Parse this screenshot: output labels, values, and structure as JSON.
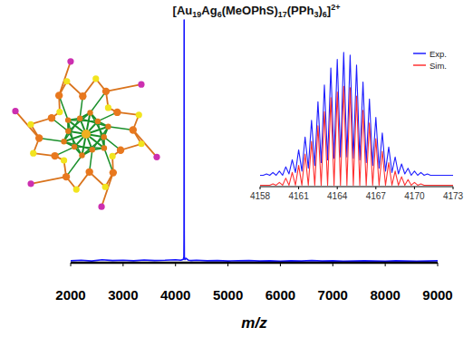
{
  "chart_data": [
    {
      "type": "line",
      "title": "[Au19Ag6(MeOPhS)17(PPh3)6]2+",
      "x_label": "m/z",
      "x": [
        2000,
        2200,
        2400,
        2600,
        2800,
        3000,
        3200,
        3400,
        3600,
        3800,
        4000,
        4100,
        4150,
        4160,
        4162,
        4163,
        4164,
        4164.5,
        4165,
        4166,
        4168,
        4180,
        4200,
        4250,
        4300,
        4400,
        4600,
        4800,
        5000,
        5200,
        5400,
        5600,
        5800,
        6000,
        6200,
        6400,
        6600,
        6800,
        7000,
        7200,
        7400,
        7600,
        7800,
        8000,
        8200,
        8400,
        8600,
        8800,
        9000
      ],
      "series": [
        {
          "color": "#1414ff",
          "values": [
            0.8,
            1.0,
            0.7,
            1.2,
            0.9,
            1.0,
            0.8,
            1.1,
            0.9,
            1.0,
            1.2,
            1.0,
            1.4,
            2.5,
            10,
            40,
            85,
            100,
            60,
            12,
            2.5,
            1.3,
            1.8,
            1.0,
            0.9,
            1.0,
            0.8,
            0.9,
            0.7,
            0.8,
            0.9,
            0.7,
            0.8,
            0.6,
            0.8,
            0.7,
            0.9,
            0.7,
            0.8,
            0.6,
            0.7,
            0.8,
            0.7,
            0.6,
            0.8,
            0.7,
            0.6,
            0.7,
            0.8
          ]
        }
      ],
      "xlim": [
        2000,
        9000
      ],
      "xticks": [
        2000,
        3000,
        4000,
        5000,
        6000,
        7000,
        8000,
        9000
      ],
      "ylim": [
        0,
        100
      ],
      "tick_labels": "x"
    },
    {
      "type": "line",
      "x": [
        4158,
        4158.25,
        4158.5,
        4158.75,
        4159,
        4159.25,
        4159.5,
        4159.75,
        4160,
        4160.25,
        4160.5,
        4160.75,
        4161,
        4161.25,
        4161.5,
        4161.75,
        4162,
        4162.25,
        4162.5,
        4162.75,
        4163,
        4163.25,
        4163.5,
        4163.75,
        4164,
        4164.25,
        4164.5,
        4164.75,
        4165,
        4165.25,
        4165.5,
        4165.75,
        4166,
        4166.25,
        4166.5,
        4166.75,
        4167,
        4167.25,
        4167.5,
        4167.75,
        4168,
        4168.25,
        4168.5,
        4168.75,
        4169,
        4169.25,
        4169.5,
        4169.75,
        4170,
        4170.25,
        4170.5,
        4170.75,
        4171,
        4171.25,
        4171.5,
        4171.75,
        4172,
        4172.25,
        4172.5,
        4172.75,
        4173
      ],
      "series": [
        {
          "name": "Exp.",
          "color": "#1f1fff",
          "values": [
            8,
            8,
            9,
            8,
            10,
            8,
            11,
            8,
            14,
            9,
            19,
            10,
            26,
            11,
            35,
            13,
            47,
            15,
            60,
            17,
            72,
            19,
            84,
            20,
            90,
            21,
            95,
            21,
            93,
            20,
            86,
            19,
            74,
            17,
            62,
            15,
            49,
            13,
            38,
            11,
            28,
            10,
            21,
            9,
            16,
            9,
            13,
            8,
            11,
            8,
            10,
            8,
            9,
            8,
            8,
            8,
            8,
            8,
            8,
            8,
            8
          ]
        },
        {
          "name": "Sim.",
          "color": "#ff3232",
          "values": [
            1,
            1,
            1,
            1,
            2,
            1,
            3,
            1,
            6,
            1,
            10,
            1,
            15,
            1,
            23,
            1,
            32,
            1,
            43,
            1,
            53,
            1,
            63,
            1,
            67,
            1,
            71,
            1,
            70,
            1,
            64,
            1,
            54,
            1,
            45,
            1,
            34,
            1,
            25,
            1,
            17,
            1,
            11,
            1,
            7,
            1,
            5,
            1,
            3,
            1,
            2,
            1,
            1,
            1,
            1,
            1,
            1,
            1,
            1,
            1,
            1
          ]
        }
      ],
      "xlim": [
        4158,
        4173
      ],
      "xticks": [
        4158,
        4161,
        4164,
        4167,
        4170,
        4173
      ],
      "ylim": [
        0,
        100
      ],
      "tick_labels": "x",
      "legend": "top-right"
    }
  ]
}
